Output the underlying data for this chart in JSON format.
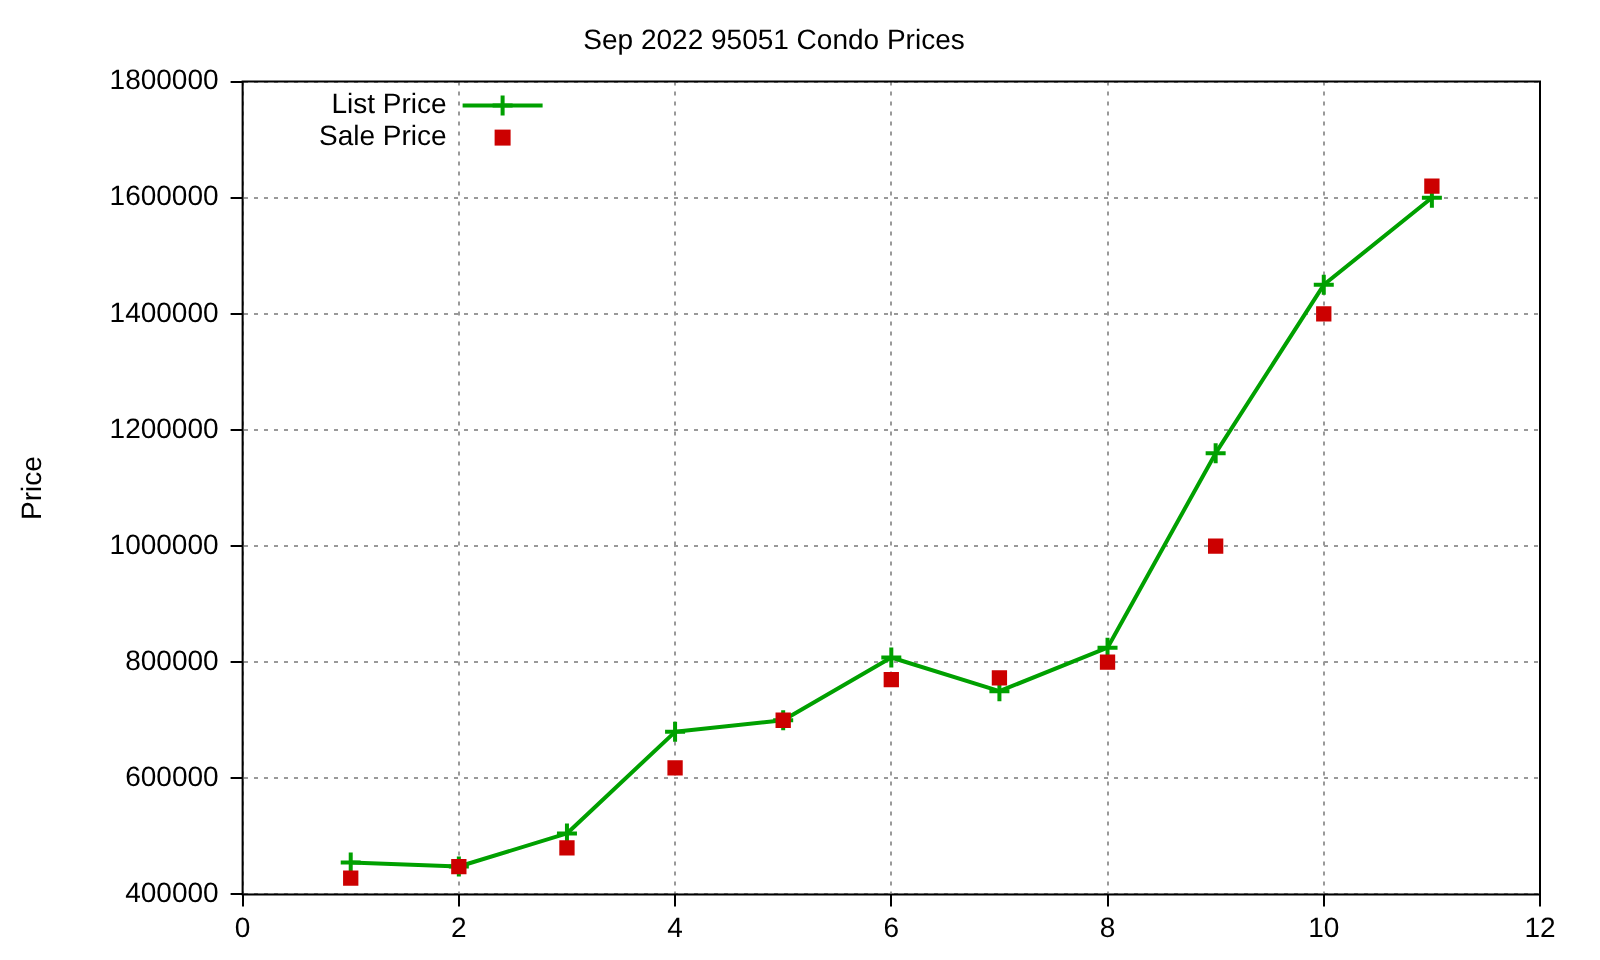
{
  "chart_data": {
    "type": "line",
    "title": "Sep 2022 95051 Condo Prices",
    "ylabel": "Price",
    "x": [
      1,
      2,
      3,
      4,
      5,
      6,
      7,
      8,
      9,
      10,
      11
    ],
    "series": [
      {
        "name": "List Price",
        "marker": "cross",
        "color": "#00a000",
        "values": [
          455000,
          448000,
          505000,
          680000,
          700000,
          808000,
          750000,
          825000,
          1160000,
          1450000,
          1600000
        ]
      },
      {
        "name": "Sale Price",
        "type": "scatter",
        "marker": "square",
        "color": "#cc0000",
        "values": [
          428000,
          448000,
          480000,
          618000,
          700000,
          770000,
          773000,
          800000,
          1000000,
          1400000,
          1620000
        ]
      }
    ],
    "xlim": [
      0,
      12
    ],
    "xticks": [
      0,
      2,
      4,
      6,
      8,
      10,
      12
    ],
    "ylim": [
      400000,
      1800000
    ],
    "yticks": [
      400000,
      600000,
      800000,
      1000000,
      1200000,
      1400000,
      1600000,
      1800000
    ],
    "grid": true,
    "legend": "top left"
  }
}
